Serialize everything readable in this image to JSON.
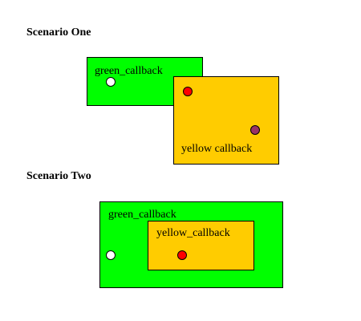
{
  "scenario_one": {
    "heading": "Scenario One",
    "green_label": "green_callback",
    "yellow_label": "yellow callback"
  },
  "scenario_two": {
    "heading": "Scenario Two",
    "green_label": "green_callback",
    "yellow_label": "yellow_callback"
  },
  "colors": {
    "green": "#00ff00",
    "yellow": "#ffcc00",
    "dot_white": "#ffffff",
    "dot_red": "#ff0000",
    "dot_purple": "#993366"
  }
}
